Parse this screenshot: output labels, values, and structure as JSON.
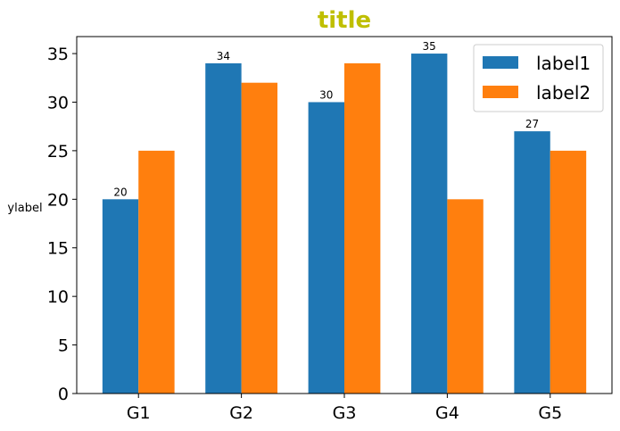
{
  "chart_data": {
    "type": "bar",
    "title": "title",
    "xlabel": "",
    "ylabel": "ylabel",
    "categories": [
      "G1",
      "G2",
      "G3",
      "G4",
      "G5"
    ],
    "series": [
      {
        "name": "label1",
        "values": [
          20,
          34,
          30,
          35,
          27
        ],
        "color": "#1f77b4",
        "show_data_labels": true
      },
      {
        "name": "label2",
        "values": [
          25,
          32,
          34,
          20,
          25
        ],
        "color": "#ff7f0e",
        "show_data_labels": false
      }
    ],
    "ylim": [
      0,
      36.75
    ],
    "yticks": [
      0,
      5,
      10,
      15,
      20,
      25,
      30,
      35
    ],
    "title_color": "#bfbf00",
    "grid": false,
    "legend_position": "upper right"
  }
}
